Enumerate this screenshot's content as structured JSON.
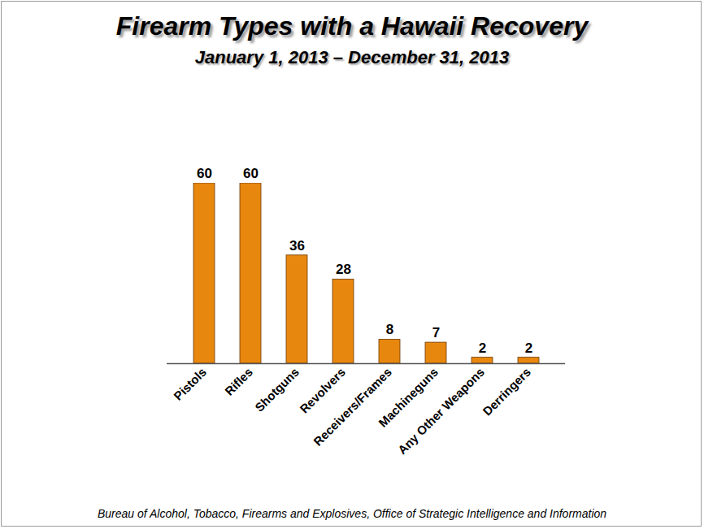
{
  "chart_data": {
    "type": "bar",
    "title": "Firearm Types with a Hawaii Recovery",
    "subtitle": "January 1, 2013 – December 31, 2013",
    "caption": "Bureau of Alcohol, Tobacco, Firearms and Explosives, Office of Strategic Intelligence and Information",
    "categories": [
      "Pistols",
      "Rifles",
      "Shotguns",
      "Revolvers",
      "Receivers/Frames",
      "Machineguns",
      "Any Other Weapons",
      "Derringers"
    ],
    "values": [
      60,
      60,
      36,
      28,
      8,
      7,
      2,
      2
    ],
    "color": "#e8870e",
    "data_labels": true,
    "tick_labels": "x",
    "grid": false
  }
}
